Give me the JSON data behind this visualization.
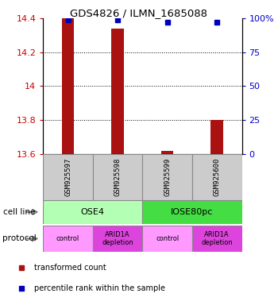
{
  "title": "GDS4826 / ILMN_1685088",
  "samples": [
    "GSM925597",
    "GSM925598",
    "GSM925599",
    "GSM925600"
  ],
  "bar_values": [
    14.4,
    14.34,
    13.62,
    13.8
  ],
  "bar_base": 13.6,
  "percentile_values": [
    99,
    99,
    97,
    97
  ],
  "percentile_scale_max": 100,
  "left_yticks": [
    13.6,
    13.8,
    14.0,
    14.2,
    14.4
  ],
  "right_yticks": [
    0,
    25,
    50,
    75,
    100
  ],
  "ylim": [
    13.6,
    14.4
  ],
  "cell_line_labels": [
    "OSE4",
    "IOSE80pc"
  ],
  "cell_line_spans": [
    [
      0,
      2
    ],
    [
      2,
      4
    ]
  ],
  "cell_line_colors": [
    "#b3ffb3",
    "#44dd44"
  ],
  "protocol_labels": [
    "control",
    "ARID1A\ndepletion",
    "control",
    "ARID1A\ndepletion"
  ],
  "protocol_colors": [
    "#ff99ff",
    "#dd44dd",
    "#ff99ff",
    "#dd44dd"
  ],
  "bar_color": "#aa1111",
  "percentile_color": "#0000bb",
  "background_color": "#ffffff",
  "legend_red_label": "transformed count",
  "legend_blue_label": "percentile rank within the sample",
  "left_label_color": "#cc0000",
  "right_label_color": "#0000cc",
  "sample_box_color": "#cccccc",
  "bar_width": 0.25
}
